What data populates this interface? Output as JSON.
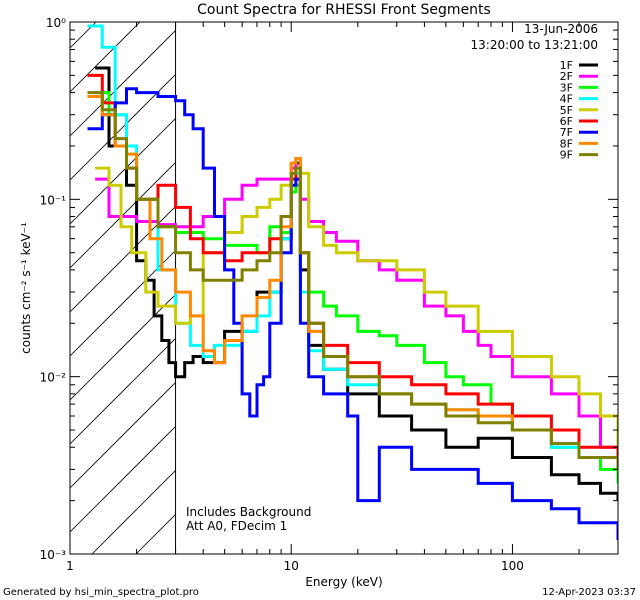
{
  "chart_data": {
    "type": "line",
    "title": "Count Spectra for RHESSI Front Segments",
    "xlabel": "Energy (keV)",
    "ylabel": "counts cm⁻² s⁻¹ keV⁻¹",
    "xscale": "log",
    "yscale": "log",
    "xlim": [
      1,
      300
    ],
    "ylim": [
      0.001,
      1
    ],
    "x_ticks": [
      {
        "value": 1,
        "label": "1"
      },
      {
        "value": 10,
        "label": "10"
      },
      {
        "value": 100,
        "label": "100"
      }
    ],
    "y_ticks": [
      {
        "value": 1,
        "label": "10⁰"
      },
      {
        "value": 0.1,
        "label": "10⁻¹"
      },
      {
        "value": 0.01,
        "label": "10⁻²"
      },
      {
        "value": 0.001,
        "label": "10⁻³"
      }
    ],
    "hatched_region_kev": [
      1,
      3
    ],
    "date": "13-Jun-2006",
    "time_range": "13:20:00 to 13:21:00",
    "notes": [
      "Includes Background",
      "Att A0, FDecim 1"
    ],
    "legend_position": "top-right",
    "series": [
      {
        "name": "1F",
        "color": "#000000",
        "points": [
          [
            1.3,
            0.55
          ],
          [
            1.5,
            0.2
          ],
          [
            1.8,
            0.12
          ],
          [
            2.0,
            0.045
          ],
          [
            2.2,
            0.035
          ],
          [
            2.4,
            0.022
          ],
          [
            2.6,
            0.016
          ],
          [
            2.8,
            0.012
          ],
          [
            3.0,
            0.01
          ],
          [
            3.3,
            0.012
          ],
          [
            3.6,
            0.013
          ],
          [
            4.0,
            0.012
          ],
          [
            5.0,
            0.018
          ],
          [
            7.0,
            0.03
          ],
          [
            9.0,
            0.06
          ],
          [
            10.0,
            0.14
          ],
          [
            10.5,
            0.16
          ],
          [
            11.0,
            0.04
          ],
          [
            12.0,
            0.015
          ],
          [
            14.0,
            0.011
          ],
          [
            18.0,
            0.008
          ],
          [
            25.0,
            0.006
          ],
          [
            35.0,
            0.005
          ],
          [
            50.0,
            0.004
          ],
          [
            70.0,
            0.0045
          ],
          [
            100.0,
            0.0035
          ],
          [
            150.0,
            0.0028
          ],
          [
            200.0,
            0.0025
          ],
          [
            250.0,
            0.0022
          ],
          [
            300.0,
            0.002
          ]
        ]
      },
      {
        "name": "2F",
        "color": "#ff00ff",
        "points": [
          [
            1.3,
            0.13
          ],
          [
            1.5,
            0.08
          ],
          [
            2.0,
            0.075
          ],
          [
            2.5,
            0.072
          ],
          [
            3.0,
            0.07
          ],
          [
            4.0,
            0.08
          ],
          [
            5.0,
            0.1
          ],
          [
            6.0,
            0.12
          ],
          [
            7.0,
            0.13
          ],
          [
            8.0,
            0.13
          ],
          [
            9.0,
            0.13
          ],
          [
            10.0,
            0.15
          ],
          [
            10.5,
            0.17
          ],
          [
            11.0,
            0.1
          ],
          [
            12.0,
            0.075
          ],
          [
            14.0,
            0.065
          ],
          [
            16.0,
            0.058
          ],
          [
            20.0,
            0.045
          ],
          [
            25.0,
            0.04
          ],
          [
            30.0,
            0.035
          ],
          [
            40.0,
            0.025
          ],
          [
            50.0,
            0.022
          ],
          [
            60.0,
            0.018
          ],
          [
            70.0,
            0.015
          ],
          [
            80.0,
            0.013
          ],
          [
            100.0,
            0.01
          ],
          [
            150.0,
            0.008
          ],
          [
            200.0,
            0.006
          ],
          [
            250.0,
            0.004
          ],
          [
            300.0,
            0.003
          ]
        ]
      },
      {
        "name": "3F",
        "color": "#00ff00",
        "points": [
          [
            1.3,
            0.4
          ],
          [
            1.5,
            0.3
          ],
          [
            1.8,
            0.18
          ],
          [
            2.0,
            0.1
          ],
          [
            2.5,
            0.07
          ],
          [
            3.0,
            0.065
          ],
          [
            4.0,
            0.06
          ],
          [
            5.0,
            0.055
          ],
          [
            6.0,
            0.055
          ],
          [
            7.0,
            0.05
          ],
          [
            8.0,
            0.07
          ],
          [
            9.0,
            0.065
          ],
          [
            10.0,
            0.11
          ],
          [
            10.5,
            0.12
          ],
          [
            11.0,
            0.05
          ],
          [
            12.0,
            0.03
          ],
          [
            14.0,
            0.025
          ],
          [
            16.0,
            0.022
          ],
          [
            20.0,
            0.018
          ],
          [
            25.0,
            0.017
          ],
          [
            30.0,
            0.015
          ],
          [
            40.0,
            0.012
          ],
          [
            50.0,
            0.01
          ],
          [
            60.0,
            0.009
          ],
          [
            80.0,
            0.007
          ],
          [
            100.0,
            0.005
          ],
          [
            150.0,
            0.004
          ],
          [
            200.0,
            0.0035
          ],
          [
            250.0,
            0.003
          ],
          [
            300.0,
            0.0025
          ]
        ]
      },
      {
        "name": "4F",
        "color": "#00ffff",
        "points": [
          [
            1.2,
            0.95
          ],
          [
            1.4,
            0.72
          ],
          [
            1.6,
            0.3
          ],
          [
            1.8,
            0.2
          ],
          [
            2.0,
            0.1
          ],
          [
            2.5,
            0.04
          ],
          [
            3.0,
            0.02
          ],
          [
            3.5,
            0.015
          ],
          [
            4.0,
            0.013
          ],
          [
            4.5,
            0.015
          ],
          [
            5.0,
            0.015
          ],
          [
            6.0,
            0.018
          ],
          [
            7.0,
            0.022
          ],
          [
            8.0,
            0.03
          ],
          [
            9.0,
            0.06
          ],
          [
            10.0,
            0.13
          ],
          [
            10.5,
            0.14
          ],
          [
            11.0,
            0.03
          ],
          [
            12.0,
            0.014
          ],
          [
            14.0,
            0.011
          ],
          [
            18.0,
            0.009
          ],
          [
            25.0,
            0.008
          ],
          [
            35.0,
            0.007
          ],
          [
            50.0,
            0.0065
          ],
          [
            70.0,
            0.006
          ],
          [
            100.0,
            0.005
          ],
          [
            150.0,
            0.004
          ],
          [
            200.0,
            0.0035
          ],
          [
            300.0,
            0.003
          ]
        ]
      },
      {
        "name": "5F",
        "color": "#cccc00",
        "points": [
          [
            1.3,
            0.15
          ],
          [
            1.5,
            0.12
          ],
          [
            1.7,
            0.07
          ],
          [
            1.9,
            0.05
          ],
          [
            2.2,
            0.03
          ],
          [
            2.5,
            0.025
          ],
          [
            3.0,
            0.02
          ],
          [
            3.5,
            0.022
          ],
          [
            4.0,
            0.05
          ],
          [
            5.0,
            0.065
          ],
          [
            6.0,
            0.08
          ],
          [
            7.0,
            0.09
          ],
          [
            8.0,
            0.1
          ],
          [
            9.0,
            0.12
          ],
          [
            10.0,
            0.16
          ],
          [
            10.5,
            0.17
          ],
          [
            11.0,
            0.14
          ],
          [
            12.0,
            0.07
          ],
          [
            14.0,
            0.055
          ],
          [
            16.0,
            0.05
          ],
          [
            20.0,
            0.045
          ],
          [
            25.0,
            0.045
          ],
          [
            30.0,
            0.04
          ],
          [
            40.0,
            0.03
          ],
          [
            50.0,
            0.025
          ],
          [
            70.0,
            0.018
          ],
          [
            100.0,
            0.013
          ],
          [
            150.0,
            0.01
          ],
          [
            200.0,
            0.008
          ],
          [
            250.0,
            0.006
          ],
          [
            300.0,
            0.004
          ]
        ]
      },
      {
        "name": "6F",
        "color": "#ff0000",
        "points": [
          [
            1.2,
            0.5
          ],
          [
            1.4,
            0.35
          ],
          [
            1.6,
            0.2
          ],
          [
            1.8,
            0.15
          ],
          [
            2.0,
            0.1
          ],
          [
            2.5,
            0.12
          ],
          [
            3.0,
            0.09
          ],
          [
            3.5,
            0.06
          ],
          [
            4.0,
            0.05
          ],
          [
            5.0,
            0.045
          ],
          [
            6.0,
            0.05
          ],
          [
            7.0,
            0.05
          ],
          [
            8.0,
            0.06
          ],
          [
            9.0,
            0.08
          ],
          [
            10.0,
            0.13
          ],
          [
            10.5,
            0.15
          ],
          [
            11.0,
            0.05
          ],
          [
            12.0,
            0.02
          ],
          [
            14.0,
            0.015
          ],
          [
            18.0,
            0.012
          ],
          [
            25.0,
            0.01
          ],
          [
            35.0,
            0.009
          ],
          [
            50.0,
            0.008
          ],
          [
            70.0,
            0.007
          ],
          [
            100.0,
            0.006
          ],
          [
            150.0,
            0.005
          ],
          [
            200.0,
            0.004
          ],
          [
            300.0,
            0.003
          ]
        ]
      },
      {
        "name": "7F",
        "color": "#0000ff",
        "points": [
          [
            1.2,
            0.25
          ],
          [
            1.4,
            0.3
          ],
          [
            1.6,
            0.35
          ],
          [
            1.8,
            0.42
          ],
          [
            2.0,
            0.4
          ],
          [
            2.5,
            0.38
          ],
          [
            3.0,
            0.36
          ],
          [
            3.3,
            0.3
          ],
          [
            3.6,
            0.25
          ],
          [
            4.0,
            0.15
          ],
          [
            4.5,
            0.08
          ],
          [
            5.0,
            0.04
          ],
          [
            5.5,
            0.02
          ],
          [
            6.0,
            0.008
          ],
          [
            6.5,
            0.006
          ],
          [
            7.0,
            0.009
          ],
          [
            7.5,
            0.01
          ],
          [
            8.0,
            0.02
          ],
          [
            9.0,
            0.05
          ],
          [
            10.0,
            0.12
          ],
          [
            10.5,
            0.13
          ],
          [
            11.0,
            0.02
          ],
          [
            12.0,
            0.01
          ],
          [
            14.0,
            0.008
          ],
          [
            18.0,
            0.006
          ],
          [
            20.0,
            0.002
          ],
          [
            25.0,
            0.004
          ],
          [
            35.0,
            0.003
          ],
          [
            50.0,
            0.003
          ],
          [
            70.0,
            0.0025
          ],
          [
            100.0,
            0.002
          ],
          [
            150.0,
            0.0018
          ],
          [
            200.0,
            0.0015
          ],
          [
            300.0,
            0.0012
          ]
        ]
      },
      {
        "name": "8F",
        "color": "#ff8800",
        "points": [
          [
            1.2,
            0.38
          ],
          [
            1.4,
            0.3
          ],
          [
            1.6,
            0.2
          ],
          [
            1.8,
            0.18
          ],
          [
            2.0,
            0.1
          ],
          [
            2.3,
            0.06
          ],
          [
            2.6,
            0.04
          ],
          [
            3.0,
            0.03
          ],
          [
            3.5,
            0.022
          ],
          [
            4.0,
            0.014
          ],
          [
            4.5,
            0.012
          ],
          [
            5.0,
            0.016
          ],
          [
            6.0,
            0.022
          ],
          [
            7.0,
            0.028
          ],
          [
            8.0,
            0.035
          ],
          [
            9.0,
            0.07
          ],
          [
            10.0,
            0.16
          ],
          [
            10.5,
            0.17
          ],
          [
            11.0,
            0.05
          ],
          [
            12.0,
            0.018
          ],
          [
            14.0,
            0.013
          ],
          [
            18.0,
            0.01
          ],
          [
            25.0,
            0.008
          ],
          [
            35.0,
            0.007
          ],
          [
            50.0,
            0.0065
          ],
          [
            70.0,
            0.006
          ],
          [
            100.0,
            0.005
          ],
          [
            150.0,
            0.0042
          ],
          [
            200.0,
            0.0035
          ],
          [
            300.0,
            0.003
          ]
        ]
      },
      {
        "name": "9F",
        "color": "#808000",
        "points": [
          [
            1.2,
            0.4
          ],
          [
            1.4,
            0.32
          ],
          [
            1.6,
            0.22
          ],
          [
            1.8,
            0.15
          ],
          [
            2.0,
            0.1
          ],
          [
            2.5,
            0.07
          ],
          [
            3.0,
            0.05
          ],
          [
            3.5,
            0.04
          ],
          [
            4.0,
            0.035
          ],
          [
            5.0,
            0.035
          ],
          [
            6.0,
            0.04
          ],
          [
            7.0,
            0.045
          ],
          [
            8.0,
            0.05
          ],
          [
            9.0,
            0.08
          ],
          [
            10.0,
            0.14
          ],
          [
            10.5,
            0.15
          ],
          [
            11.0,
            0.05
          ],
          [
            12.0,
            0.02
          ],
          [
            14.0,
            0.013
          ],
          [
            18.0,
            0.01
          ],
          [
            25.0,
            0.008
          ],
          [
            35.0,
            0.007
          ],
          [
            50.0,
            0.006
          ],
          [
            70.0,
            0.0055
          ],
          [
            100.0,
            0.005
          ],
          [
            150.0,
            0.0042
          ],
          [
            200.0,
            0.0035
          ],
          [
            300.0,
            0.003
          ]
        ]
      }
    ]
  },
  "footer": {
    "generated_by": "Generated by hsi_min_spectra_plot.pro",
    "timestamp": "12-Apr-2023 03:37"
  }
}
